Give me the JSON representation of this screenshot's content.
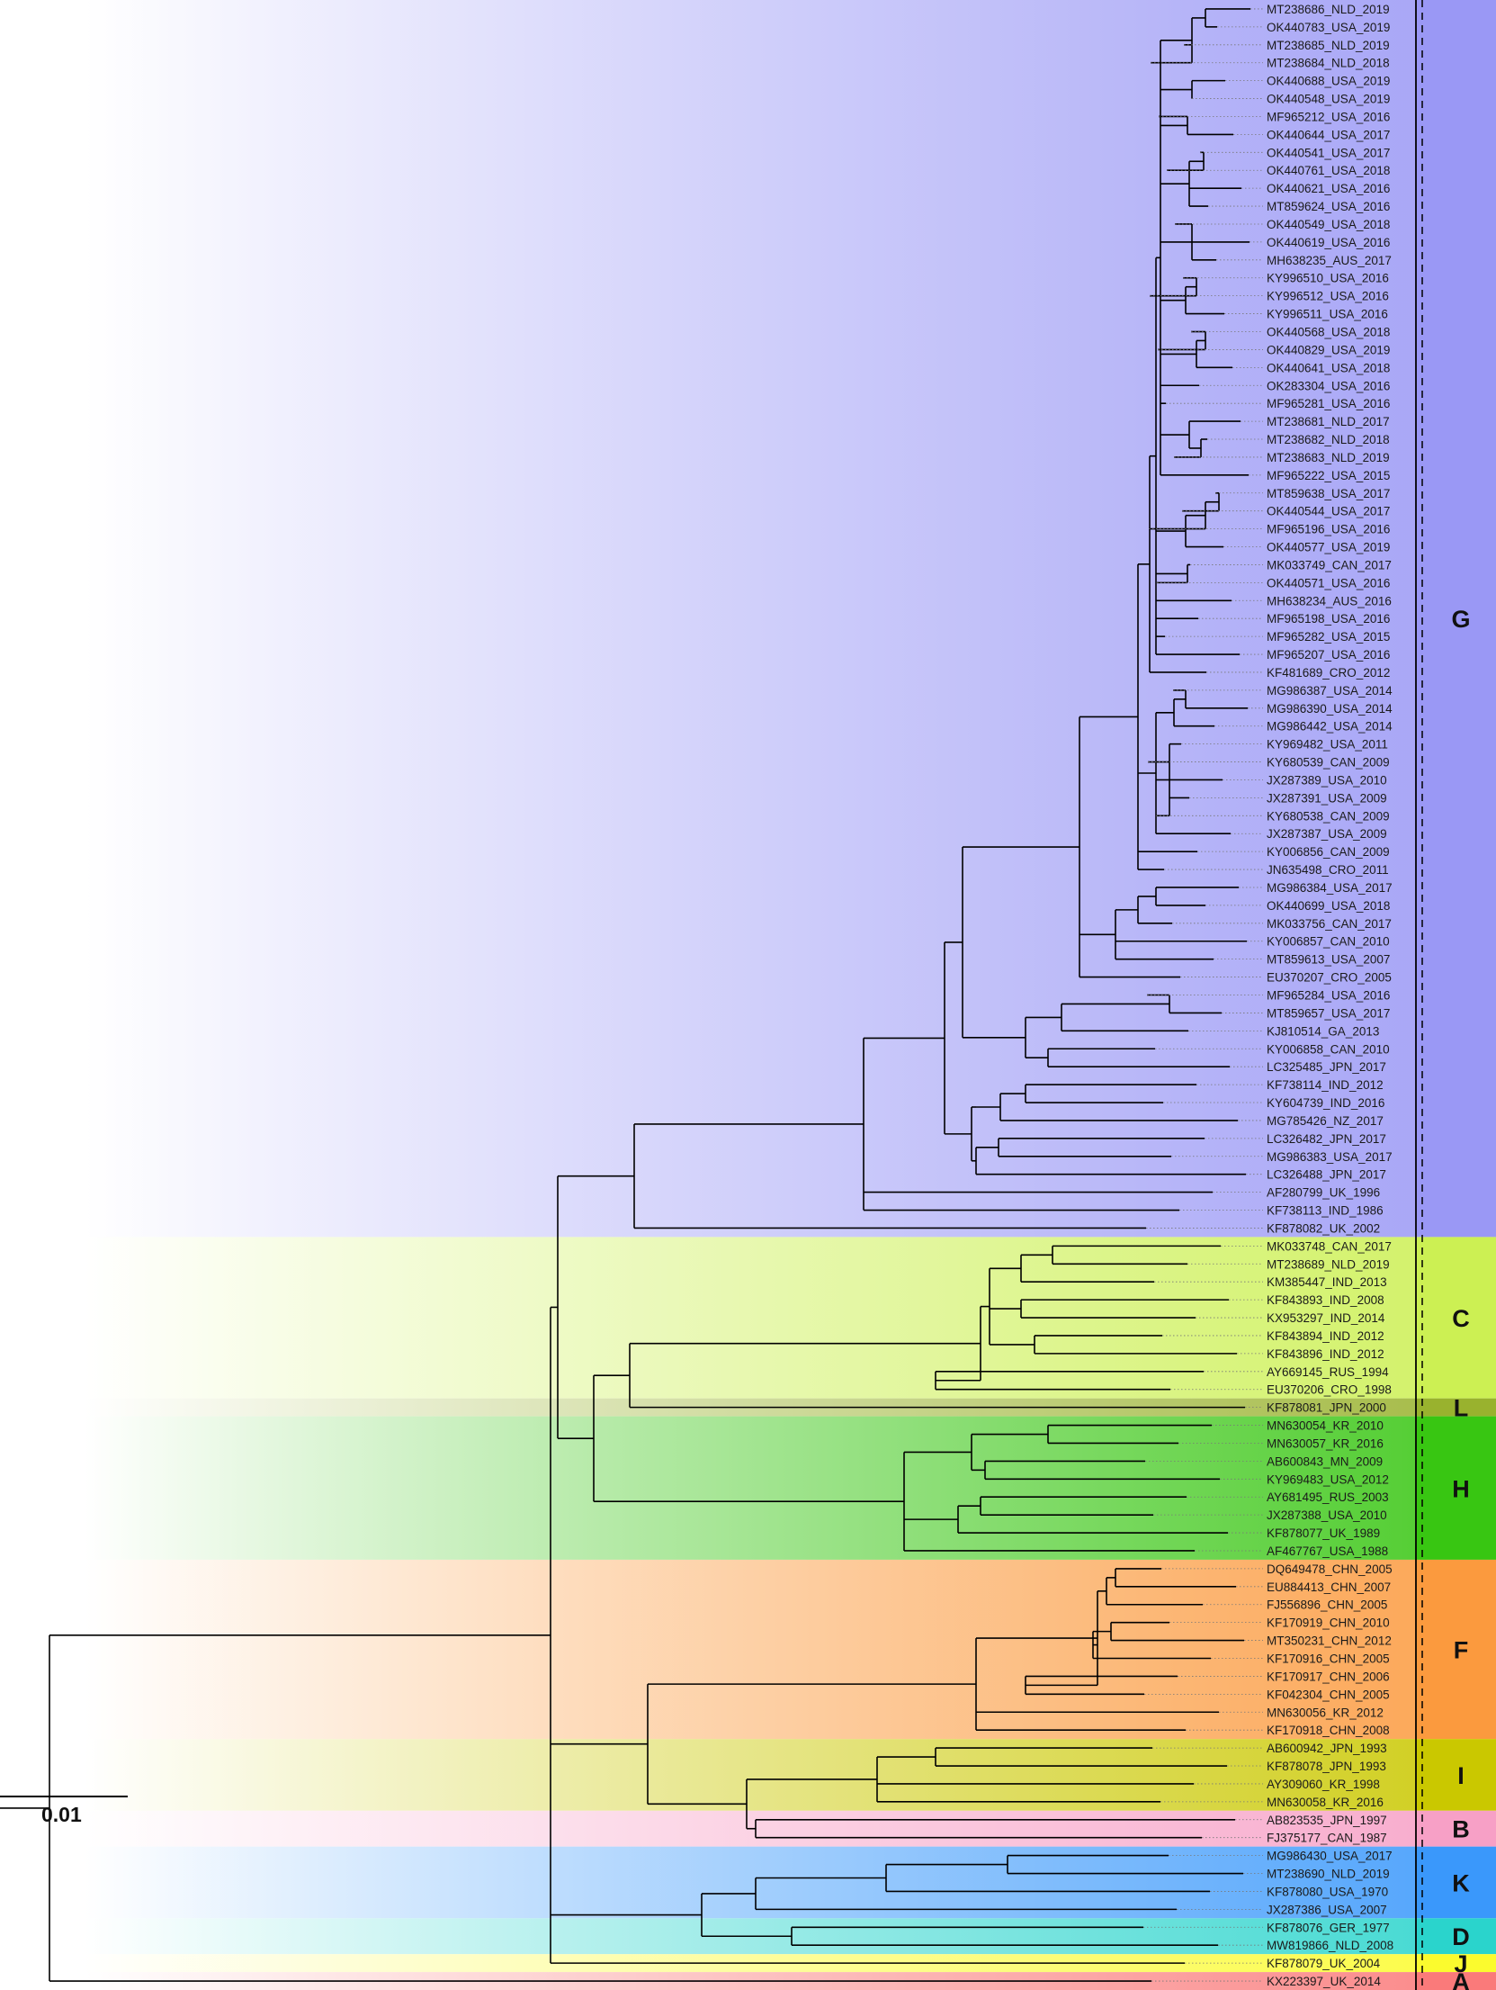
{
  "leaves": [
    "MT238686_NLD_2019",
    "OK440783_USA_2019",
    "MT238685_NLD_2019",
    "MT238684_NLD_2018",
    "OK440688_USA_2019",
    "OK440548_USA_2019",
    "MF965212_USA_2016",
    "OK440644_USA_2017",
    "OK440541_USA_2017",
    "OK440761_USA_2018",
    "OK440621_USA_2016",
    "MT859624_USA_2016",
    "OK440549_USA_2018",
    "OK440619_USA_2016",
    "MH638235_AUS_2017",
    "KY996510_USA_2016",
    "KY996512_USA_2016",
    "KY996511_USA_2016",
    "OK440568_USA_2018",
    "OK440829_USA_2019",
    "OK440641_USA_2018",
    "OK283304_USA_2016",
    "MF965281_USA_2016",
    "MT238681_NLD_2017",
    "MT238682_NLD_2018",
    "MT238683_NLD_2019",
    "MF965222_USA_2015",
    "MT859638_USA_2017",
    "OK440544_USA_2017",
    "MF965196_USA_2016",
    "OK440577_USA_2019",
    "MK033749_CAN_2017",
    "OK440571_USA_2016",
    "MH638234_AUS_2016",
    "MF965198_USA_2016",
    "MF965282_USA_2015",
    "MF965207_USA_2016",
    "KF481689_CRO_2012",
    "MG986387_USA_2014",
    "MG986390_USA_2014",
    "MG986442_USA_2014",
    "KY969482_USA_2011",
    "KY680539_CAN_2009",
    "JX287389_USA_2010",
    "JX287391_USA_2009",
    "KY680538_CAN_2009",
    "JX287387_USA_2009",
    "KY006856_CAN_2009",
    "JN635498_CRO_2011",
    "MG986384_USA_2017",
    "OK440699_USA_2018",
    "MK033756_CAN_2017",
    "KY006857_CAN_2010",
    "MT859613_USA_2007",
    "EU370207_CRO_2005",
    "MF965284_USA_2016",
    "MT859657_USA_2017",
    "KJ810514_GA_2013",
    "KY006858_CAN_2010",
    "LC325485_JPN_2017",
    "KF738114_IND_2012",
    "KY604739_IND_2016",
    "MG785426_NZ_2017",
    "LC326482_JPN_2017",
    "MG986383_USA_2017",
    "LC326488_JPN_2017",
    "AF280799_UK_1996",
    "KF738113_IND_1986",
    "KF878082_UK_2002",
    "MK033748_CAN_2017",
    "MT238689_NLD_2019",
    "KM385447_IND_2013",
    "KF843893_IND_2008",
    "KX953297_IND_2014",
    "KF843894_IND_2012",
    "KF843896_IND_2012",
    "AY669145_RUS_1994",
    "EU370206_CRO_1998",
    "KF878081_JPN_2000",
    "MN630054_KR_2010",
    "MN630057_KR_2016",
    "AB600843_MN_2009",
    "KY969483_USA_2012",
    "AY681495_RUS_2003",
    "JX287388_USA_2010",
    "KF878077_UK_1989",
    "AF467767_USA_1988",
    "DQ649478_CHN_2005",
    "EU884413_CHN_2007",
    "FJ556896_CHN_2005",
    "KF170919_CHN_2010",
    "MT350231_CHN_2012",
    "KF170916_CHN_2005",
    "KF170917_CHN_2006",
    "KF042304_CHN_2005",
    "MN630056_KR_2012",
    "KF170918_CHN_2008",
    "AB600942_JPN_1993",
    "KF878078_JPN_1993",
    "AY309060_KR_1998",
    "MN630058_KR_2016",
    "AB823535_JPN_1997",
    "FJ375177_CAN_1987",
    "MG986430_USA_2017",
    "MT238690_NLD_2019",
    "KF878080_USA_1970",
    "JX287386_USA_2007",
    "KF878076_GER_1977",
    "MW819866_NLD_2008",
    "KF878079_UK_2004",
    "KX223397_UK_2014"
  ],
  "clades": [
    {
      "label": "G",
      "from": 0,
      "to": 68,
      "color": "#9a98f5"
    },
    {
      "label": "C",
      "from": 69,
      "to": 77,
      "color": "#ccf053"
    },
    {
      "label": "L",
      "from": 78,
      "to": 78,
      "color": "#99b22e"
    },
    {
      "label": "H",
      "from": 79,
      "to": 86,
      "color": "#38c612"
    },
    {
      "label": "F",
      "from": 87,
      "to": 96,
      "color": "#fb9a3e"
    },
    {
      "label": "I",
      "from": 97,
      "to": 100,
      "color": "#cac800"
    },
    {
      "label": "B",
      "from": 101,
      "to": 102,
      "color": "#f7a0c6"
    },
    {
      "label": "K",
      "from": 103,
      "to": 106,
      "color": "#3a98fb"
    },
    {
      "label": "D",
      "from": 107,
      "to": 108,
      "color": "#2ad4cc"
    },
    {
      "label": "J",
      "from": 109,
      "to": 109,
      "color": "#fbfb2e"
    },
    {
      "label": "A",
      "from": 110,
      "to": 110,
      "color": "#fa7a7a"
    }
  ],
  "scale_bar": {
    "label": "0.01"
  }
}
